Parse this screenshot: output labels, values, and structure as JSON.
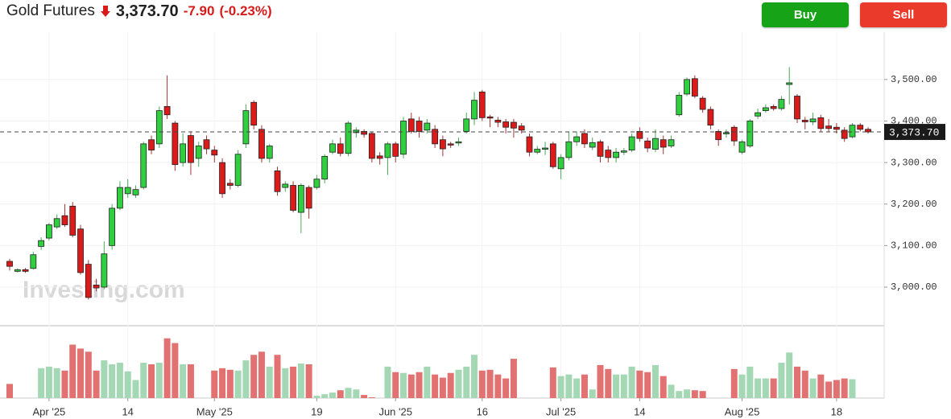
{
  "header": {
    "title": "Gold Futures",
    "price": "3,373.70",
    "change": "-7.90",
    "change_pct": "(-0.23%)",
    "buy": "Buy",
    "sell": "Sell"
  },
  "chart_data": {
    "type": "candlestick",
    "watermark": "Investing.com",
    "categories": [
      null,
      null,
      null,
      null,
      null,
      "Apr '25",
      null,
      null,
      null,
      null,
      null,
      null,
      null,
      null,
      null,
      "14",
      null,
      null,
      null,
      null,
      null,
      null,
      null,
      null,
      null,
      null,
      "May '25",
      null,
      null,
      null,
      null,
      null,
      null,
      null,
      null,
      null,
      null,
      null,
      null,
      "19",
      null,
      null,
      null,
      null,
      null,
      null,
      null,
      null,
      null,
      "Jun '25",
      null,
      null,
      null,
      null,
      null,
      null,
      null,
      null,
      null,
      null,
      "16",
      null,
      null,
      null,
      null,
      null,
      null,
      null,
      null,
      null,
      "Jul '25",
      null,
      null,
      null,
      null,
      null,
      null,
      null,
      null,
      null,
      "14",
      null,
      null,
      null,
      null,
      null,
      null,
      null,
      null,
      null,
      null,
      null,
      null,
      "Aug '25",
      null,
      null,
      null,
      null,
      null,
      null,
      null,
      null,
      null,
      null,
      null,
      "18",
      null,
      null,
      null,
      null
    ],
    "open": [
      3062,
      3038,
      3042,
      3045,
      3098,
      3118,
      3145,
      3172,
      3195,
      3140,
      3055,
      3005,
      3000,
      3100,
      3190,
      3225,
      3222,
      3240,
      3355,
      3345,
      3435,
      3395,
      3300,
      3365,
      3310,
      3355,
      3330,
      3300,
      3250,
      3245,
      3345,
      3445,
      3380,
      3310,
      3280,
      3240,
      3245,
      3180,
      3240,
      3240,
      3260,
      3325,
      3345,
      3322,
      3372,
      3375,
      3370,
      3316,
      3312,
      3345,
      3320,
      3405,
      3400,
      3378,
      3380,
      3355,
      3345,
      3347,
      3375,
      3405,
      3470,
      3410,
      3402,
      3398,
      3397,
      3388,
      3362,
      3325,
      3332,
      3345,
      3285,
      3312,
      3350,
      3370,
      3337,
      3350,
      3330,
      3312,
      3325,
      3330,
      3375,
      3352,
      3332,
      3355,
      3340,
      3415,
      3465,
      3502,
      3455,
      3428,
      3375,
      3370,
      3385,
      3325,
      3340,
      3412,
      3425,
      3435,
      3430,
      3488,
      3460,
      3402,
      3398,
      3408,
      3388,
      3385,
      3378,
      3362,
      3390,
      3380
    ],
    "high": [
      3068,
      3045,
      3046,
      3085,
      3120,
      3155,
      3175,
      3200,
      3205,
      3150,
      3065,
      3020,
      3110,
      3200,
      3255,
      3260,
      3245,
      3350,
      3365,
      3435,
      3510,
      3400,
      3370,
      3375,
      3350,
      3365,
      3340,
      3310,
      3260,
      3330,
      3440,
      3450,
      3390,
      3345,
      3290,
      3255,
      3255,
      3250,
      3245,
      3270,
      3320,
      3355,
      3360,
      3400,
      3385,
      3380,
      3375,
      3325,
      3350,
      3350,
      3410,
      3420,
      3410,
      3405,
      3390,
      3365,
      3350,
      3360,
      3420,
      3470,
      3475,
      3415,
      3410,
      3405,
      3405,
      3395,
      3370,
      3340,
      3350,
      3350,
      3320,
      3375,
      3375,
      3380,
      3360,
      3355,
      3340,
      3335,
      3335,
      3370,
      3385,
      3360,
      3380,
      3365,
      3365,
      3470,
      3505,
      3510,
      3460,
      3435,
      3380,
      3380,
      3390,
      3355,
      3405,
      3430,
      3440,
      3440,
      3460,
      3530,
      3465,
      3410,
      3420,
      3415,
      3405,
      3395,
      3385,
      3395,
      3395,
      3385
    ],
    "low": [
      3040,
      3035,
      3034,
      3042,
      3090,
      3112,
      3140,
      3145,
      3120,
      3030,
      2970,
      2990,
      2995,
      3090,
      3185,
      3215,
      3215,
      3235,
      3320,
      3335,
      3405,
      3280,
      3290,
      3270,
      3290,
      3320,
      3300,
      3215,
      3235,
      3240,
      3335,
      3380,
      3300,
      3300,
      3220,
      3230,
      3180,
      3130,
      3165,
      3235,
      3250,
      3320,
      3315,
      3315,
      3360,
      3360,
      3300,
      3295,
      3270,
      3300,
      3310,
      3370,
      3360,
      3370,
      3335,
      3315,
      3335,
      3340,
      3370,
      3390,
      3400,
      3385,
      3385,
      3370,
      3360,
      3370,
      3315,
      3320,
      3318,
      3285,
      3260,
      3305,
      3340,
      3335,
      3330,
      3300,
      3300,
      3300,
      3318,
      3325,
      3350,
      3325,
      3325,
      3320,
      3335,
      3410,
      3460,
      3455,
      3420,
      3380,
      3340,
      3360,
      3340,
      3320,
      3335,
      3405,
      3420,
      3425,
      3425,
      3440,
      3395,
      3380,
      3390,
      3375,
      3375,
      3370,
      3350,
      3358,
      3375,
      3370
    ],
    "close": [
      3050,
      3042,
      3038,
      3078,
      3112,
      3150,
      3165,
      3150,
      3125,
      3035,
      2975,
      2998,
      3080,
      3190,
      3240,
      3240,
      3235,
      3345,
      3330,
      3425,
      3415,
      3295,
      3345,
      3300,
      3340,
      3333,
      3318,
      3225,
      3245,
      3320,
      3425,
      3390,
      3310,
      3340,
      3230,
      3248,
      3185,
      3245,
      3190,
      3260,
      3315,
      3345,
      3322,
      3395,
      3378,
      3368,
      3310,
      3310,
      3345,
      3315,
      3400,
      3375,
      3375,
      3395,
      3345,
      3333,
      3342,
      3350,
      3405,
      3450,
      3408,
      3407,
      3397,
      3385,
      3383,
      3378,
      3325,
      3332,
      3335,
      3290,
      3312,
      3350,
      3362,
      3345,
      3348,
      3315,
      3312,
      3325,
      3328,
      3362,
      3358,
      3335,
      3358,
      3337,
      3355,
      3462,
      3500,
      3460,
      3428,
      3390,
      3355,
      3372,
      3352,
      3350,
      3400,
      3420,
      3432,
      3430,
      3452,
      3492,
      3405,
      3398,
      3405,
      3382,
      3382,
      3380,
      3358,
      3390,
      3380,
      3373.7
    ],
    "volume": [
      18,
      null,
      null,
      null,
      38,
      40,
      38,
      35,
      68,
      63,
      59,
      35,
      48,
      43,
      45,
      34,
      23,
      45,
      43,
      45,
      76,
      70,
      43,
      43,
      null,
      null,
      35,
      38,
      36,
      35,
      48,
      55,
      59,
      40,
      55,
      38,
      40,
      44,
      43,
      3,
      5,
      7,
      10,
      13,
      11,
      4,
      1,
      null,
      40,
      33,
      32,
      30,
      33,
      40,
      30,
      26,
      32,
      36,
      40,
      55,
      35,
      36,
      30,
      25,
      50,
      null,
      null,
      null,
      null,
      39,
      28,
      30,
      25,
      30,
      11,
      42,
      37,
      30,
      30,
      40,
      35,
      33,
      42,
      28,
      17,
      9,
      11,
      10,
      9,
      null,
      null,
      null,
      37,
      30,
      40,
      25,
      25,
      25,
      45,
      58,
      40,
      35,
      25,
      30,
      21,
      23,
      25,
      24,
      null,
      null
    ],
    "ylim": [
      2907,
      3614
    ],
    "yticks": [
      {
        "value": 3000,
        "label": "3,000.00"
      },
      {
        "value": 3100,
        "label": "3,100.00"
      },
      {
        "value": 3200,
        "label": "3,200.00"
      },
      {
        "value": 3300,
        "label": "3,300.00"
      },
      {
        "value": 3400,
        "label": "3,400.00"
      },
      {
        "value": 3500,
        "label": "3,500.00"
      }
    ],
    "y2lim": [
      0,
      90
    ],
    "current_price": {
      "value": 3373.7,
      "label": "3,373.70"
    },
    "grid": true,
    "up_color": "#2fcf3f",
    "down_color": "#dc1a1a",
    "volume_up_color": "#a4d8b4",
    "volume_down_color": "#e27272"
  }
}
